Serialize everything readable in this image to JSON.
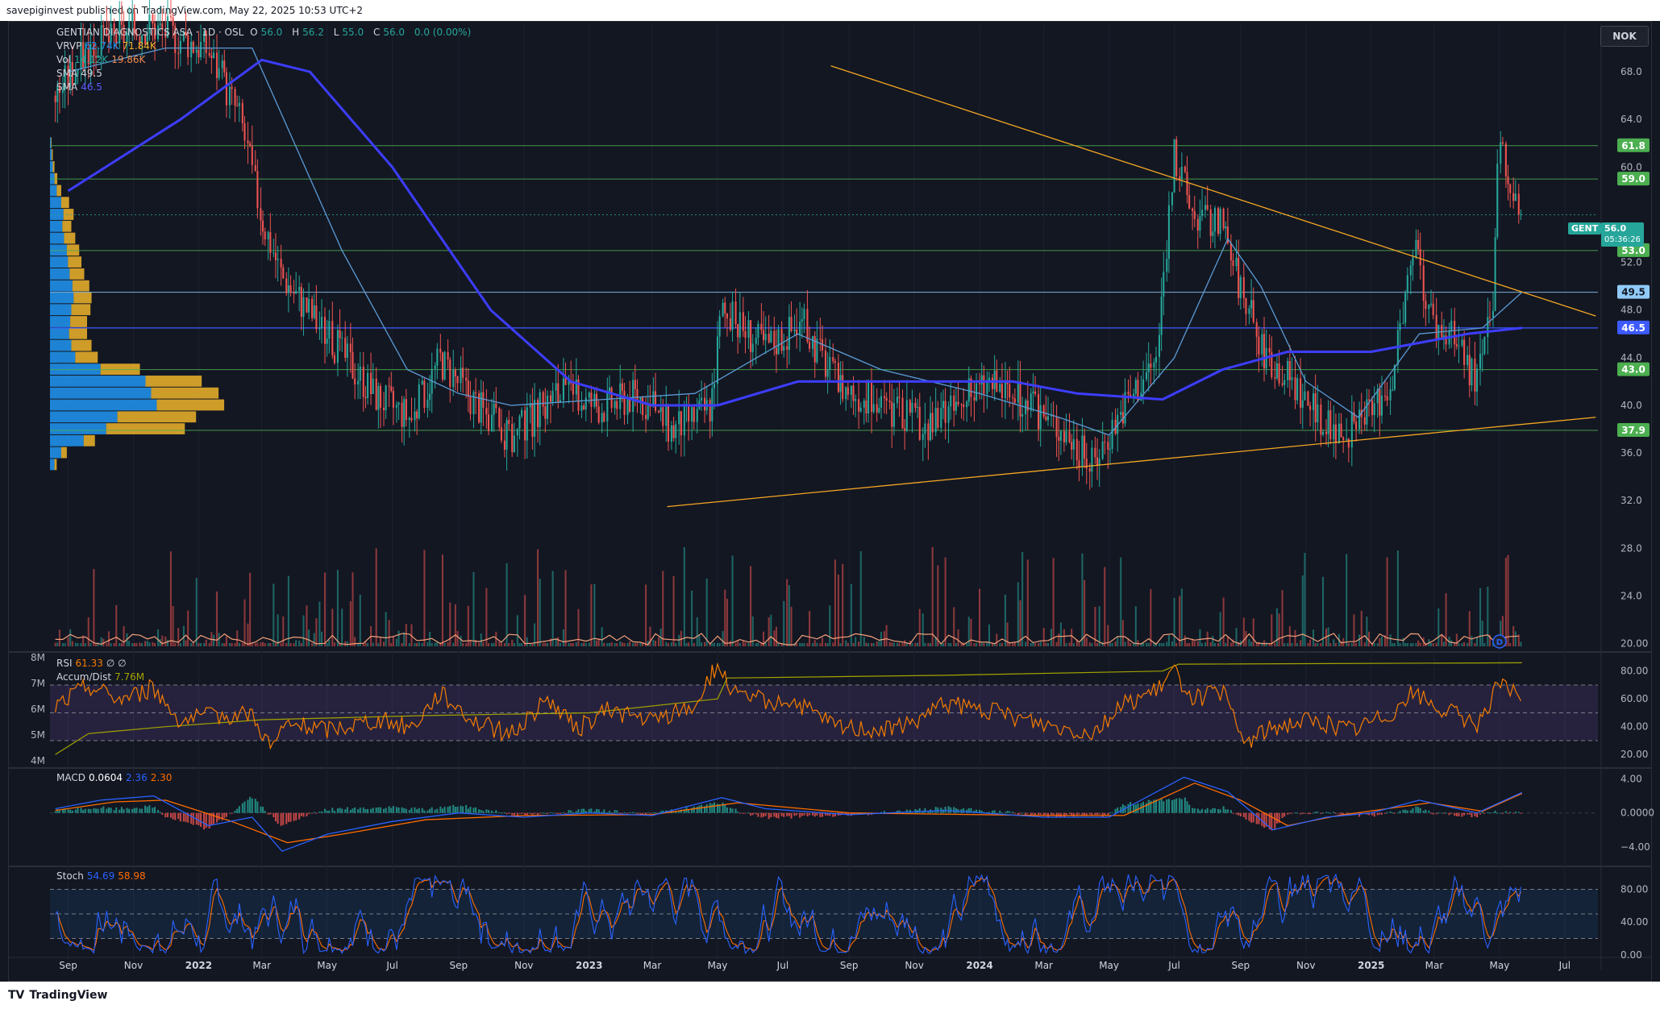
{
  "header": {
    "publisher": "savepiginvest published on TradingView.com, May 22, 2025 10:53 UTC+2"
  },
  "footer": {
    "brand": "TradingView",
    "logo_text": "TV"
  },
  "currency_button": "NOK",
  "legend": {
    "symbol": "GENTIAN DIAGNOSTICS ASA · 1D · OSL",
    "o_label": "O",
    "o_value": "56.0",
    "h_label": "H",
    "h_value": "56.2",
    "l_label": "L",
    "l_value": "55.0",
    "c_label": "C",
    "c_value": "56.0",
    "change": "0.0 (0.00%)",
    "vrvp_label": "VRVP",
    "vrvp_v1": "62.74K",
    "vrvp_v2": "71.84K",
    "vol_label": "Vol",
    "vol_v1": "14.12K",
    "vol_v2": "19.86K",
    "sma1_label": "SMA",
    "sma1_value": "49.5",
    "sma2_label": "SMA",
    "sma2_value": "46.5"
  },
  "price_tag": {
    "symbol": "GENT",
    "price": "56.0",
    "countdown": "05:36:26"
  },
  "colors": {
    "background": "#131722",
    "up": "#26a69a",
    "down": "#ef5350",
    "sma_fast": "#5b9bd5",
    "sma_slow": "#3d3dff",
    "trendline": "#f5a623",
    "support": "#4caf50",
    "rsi": "#f57c00",
    "vrvp_up": "#2196f3",
    "vrvp_down": "#f0b429"
  },
  "chart_data": [
    {
      "id": "price",
      "type": "candlestick",
      "y_ticks": [
        "68.0",
        "64.0",
        "60.0",
        "52.0",
        "48.0",
        "44.0",
        "40.0",
        "36.0",
        "32.0",
        "28.0",
        "24.0",
        "20.00"
      ],
      "ylim": [
        19.5,
        72
      ],
      "x_ticks": [
        "Sep",
        "Nov",
        "2022",
        "Mar",
        "May",
        "Jul",
        "Sep",
        "Nov",
        "2023",
        "Mar",
        "May",
        "Jul",
        "Sep",
        "Nov",
        "2024",
        "Mar",
        "May",
        "Jul",
        "Sep",
        "Nov",
        "2025",
        "Mar",
        "May",
        "Jul"
      ],
      "x_dates": [
        "2021-09",
        "2021-11",
        "2022-01",
        "2022-03",
        "2022-05",
        "2022-07",
        "2022-09",
        "2022-11",
        "2023-01",
        "2023-03",
        "2023-05",
        "2023-07",
        "2023-09",
        "2023-11",
        "2024-01",
        "2024-03",
        "2024-05",
        "2024-07",
        "2024-09",
        "2024-11",
        "2025-01",
        "2025-03",
        "2025-05",
        "2025-07"
      ],
      "levels": [
        {
          "value": 61.8,
          "label": "61.8",
          "kind": "support"
        },
        {
          "value": 59.0,
          "label": "59.0",
          "kind": "support"
        },
        {
          "value": 53.0,
          "label": "53.0",
          "kind": "support"
        },
        {
          "value": 49.5,
          "label": "49.5",
          "kind": "sma_fast"
        },
        {
          "value": 46.5,
          "label": "46.5",
          "kind": "sma_slow"
        },
        {
          "value": 43.0,
          "label": "43.0",
          "kind": "support"
        },
        {
          "value": 37.9,
          "label": "37.9",
          "kind": "support"
        }
      ],
      "price_path": [
        [
          "2021-08-20",
          66
        ],
        [
          "2021-09-20",
          70
        ],
        [
          "2021-11-15",
          72
        ],
        [
          "2022-01-10",
          70
        ],
        [
          "2022-02-10",
          64
        ],
        [
          "2022-03-01",
          56
        ],
        [
          "2022-03-20",
          51
        ],
        [
          "2022-05-01",
          46
        ],
        [
          "2022-06-15",
          41
        ],
        [
          "2022-07-20",
          39
        ],
        [
          "2022-08-15",
          44
        ],
        [
          "2022-09-20",
          40
        ],
        [
          "2022-10-20",
          37
        ],
        [
          "2022-12-01",
          41
        ],
        [
          "2023-01-15",
          40
        ],
        [
          "2023-02-15",
          41
        ],
        [
          "2023-03-20",
          38
        ],
        [
          "2023-04-25",
          40
        ],
        [
          "2023-05-05",
          48
        ],
        [
          "2023-06-15",
          45
        ],
        [
          "2023-07-20",
          47
        ],
        [
          "2023-08-20",
          42
        ],
        [
          "2023-10-01",
          40
        ],
        [
          "2023-11-15",
          38
        ],
        [
          "2024-01-10",
          42
        ],
        [
          "2024-02-15",
          40
        ],
        [
          "2024-03-20",
          38
        ],
        [
          "2024-04-15",
          35
        ],
        [
          "2024-05-15",
          40
        ],
        [
          "2024-06-15",
          44
        ],
        [
          "2024-07-01",
          61
        ],
        [
          "2024-07-20",
          56
        ],
        [
          "2024-08-15",
          55
        ],
        [
          "2024-09-01",
          50
        ],
        [
          "2024-09-20",
          45
        ],
        [
          "2024-10-20",
          42
        ],
        [
          "2024-11-20",
          38
        ],
        [
          "2024-12-20",
          38
        ],
        [
          "2025-01-20",
          42
        ],
        [
          "2025-02-10",
          53
        ],
        [
          "2025-03-01",
          47
        ],
        [
          "2025-03-25",
          45
        ],
        [
          "2025-04-10",
          42
        ],
        [
          "2025-04-25",
          48
        ],
        [
          "2025-05-01",
          61.5
        ],
        [
          "2025-05-22",
          56
        ]
      ],
      "sma_slow_path": [
        [
          "2021-09-01",
          58
        ],
        [
          "2021-12-15",
          64
        ],
        [
          "2022-03-01",
          69
        ],
        [
          "2022-04-15",
          68
        ],
        [
          "2022-07-01",
          60
        ],
        [
          "2022-10-01",
          48
        ],
        [
          "2022-12-15",
          42
        ],
        [
          "2023-03-01",
          40
        ],
        [
          "2023-05-01",
          40
        ],
        [
          "2023-07-15",
          42
        ],
        [
          "2023-11-01",
          42
        ],
        [
          "2024-02-01",
          42
        ],
        [
          "2024-04-01",
          41
        ],
        [
          "2024-06-20",
          40.5
        ],
        [
          "2024-08-15",
          43
        ],
        [
          "2024-10-15",
          44.5
        ],
        [
          "2025-01-01",
          44.5
        ],
        [
          "2025-04-01",
          46
        ],
        [
          "2025-05-22",
          46.5
        ]
      ],
      "sma_fast_path": [
        [
          "2021-09-01",
          68
        ],
        [
          "2021-12-01",
          70
        ],
        [
          "2022-02-20",
          70
        ],
        [
          "2022-05-15",
          53
        ],
        [
          "2022-07-15",
          43
        ],
        [
          "2022-09-01",
          41
        ],
        [
          "2022-10-20",
          40
        ],
        [
          "2023-01-15",
          40.5
        ],
        [
          "2023-04-10",
          41
        ],
        [
          "2023-07-15",
          46
        ],
        [
          "2023-10-01",
          43
        ],
        [
          "2024-01-01",
          41
        ],
        [
          "2024-03-15",
          39
        ],
        [
          "2024-05-01",
          37.5
        ],
        [
          "2024-07-01",
          44
        ],
        [
          "2024-08-20",
          54
        ],
        [
          "2024-09-20",
          50
        ],
        [
          "2024-11-01",
          42
        ],
        [
          "2024-12-20",
          39
        ],
        [
          "2025-02-15",
          46
        ],
        [
          "2025-04-15",
          46.5
        ],
        [
          "2025-05-22",
          49.5
        ]
      ],
      "trendlines": [
        {
          "from": [
            "2023-08-15",
            68.5
          ],
          "to": [
            "2025-07-30",
            47.5
          ]
        },
        {
          "from": [
            "2023-03-15",
            31.5
          ],
          "to": [
            "2025-07-30",
            39.0
          ]
        }
      ],
      "vrvp": [
        {
          "price": 62,
          "up": 2,
          "down": 1
        },
        {
          "price": 61,
          "up": 3,
          "down": 2
        },
        {
          "price": 60,
          "up": 5,
          "down": 3
        },
        {
          "price": 59,
          "up": 8,
          "down": 5
        },
        {
          "price": 58,
          "up": 12,
          "down": 8
        },
        {
          "price": 57,
          "up": 20,
          "down": 14
        },
        {
          "price": 56,
          "up": 24,
          "down": 18
        },
        {
          "price": 55,
          "up": 22,
          "down": 16
        },
        {
          "price": 54,
          "up": 25,
          "down": 20
        },
        {
          "price": 53,
          "up": 30,
          "down": 22
        },
        {
          "price": 52,
          "up": 32,
          "down": 24
        },
        {
          "price": 51,
          "up": 35,
          "down": 26
        },
        {
          "price": 50,
          "up": 40,
          "down": 30
        },
        {
          "price": 49,
          "up": 42,
          "down": 32
        },
        {
          "price": 48,
          "up": 38,
          "down": 34
        },
        {
          "price": 47,
          "up": 36,
          "down": 30
        },
        {
          "price": 46,
          "up": 34,
          "down": 32
        },
        {
          "price": 45,
          "up": 38,
          "down": 36
        },
        {
          "price": 44,
          "up": 45,
          "down": 40
        },
        {
          "price": 43,
          "up": 90,
          "down": 70
        },
        {
          "price": 42,
          "up": 170,
          "down": 100
        },
        {
          "price": 41,
          "up": 180,
          "down": 120
        },
        {
          "price": 40,
          "up": 190,
          "down": 120
        },
        {
          "price": 39,
          "up": 120,
          "down": 140
        },
        {
          "price": 38,
          "up": 100,
          "down": 140
        },
        {
          "price": 37,
          "up": 60,
          "down": 20
        },
        {
          "price": 36,
          "up": 20,
          "down": 10
        },
        {
          "price": 35,
          "up": 8,
          "down": 4
        }
      ],
      "dividend_marker": {
        "date": "2025-05-01",
        "label": "D"
      }
    },
    {
      "id": "rsi",
      "type": "line",
      "legend_label": "RSI",
      "legend_value": "61.33",
      "legend_extra": "∅ ∅",
      "accum_label": "Accum/Dist",
      "accum_value": "7.76M",
      "left_ticks": [
        "8M",
        "7M",
        "6M",
        "5M",
        "4M"
      ],
      "y_ticks": [
        "80.00",
        "60.00",
        "40.00",
        "20.00"
      ],
      "ylim": [
        12,
        92
      ],
      "bands": [
        70,
        50,
        30
      ],
      "path": [
        [
          "2021-08-20",
          55
        ],
        [
          "2021-09-20",
          70
        ],
        [
          "2021-10-20",
          60
        ],
        [
          "2021-11-20",
          68
        ],
        [
          "2021-12-15",
          45
        ],
        [
          "2022-01-20",
          48
        ],
        [
          "2022-02-20",
          50
        ],
        [
          "2022-03-10",
          25
        ],
        [
          "2022-03-25",
          42
        ],
        [
          "2022-05-01",
          38
        ],
        [
          "2022-06-15",
          45
        ],
        [
          "2022-07-20",
          40
        ],
        [
          "2022-08-15",
          65
        ],
        [
          "2022-09-20",
          42
        ],
        [
          "2022-10-20",
          35
        ],
        [
          "2022-11-25",
          60
        ],
        [
          "2022-12-20",
          38
        ],
        [
          "2023-01-20",
          52
        ],
        [
          "2023-03-01",
          44
        ],
        [
          "2023-04-10",
          55
        ],
        [
          "2023-05-01",
          85
        ],
        [
          "2023-05-20",
          60
        ],
        [
          "2023-07-10",
          58
        ],
        [
          "2023-08-20",
          40
        ],
        [
          "2023-10-15",
          38
        ],
        [
          "2023-12-01",
          56
        ],
        [
          "2024-01-20",
          50
        ],
        [
          "2024-03-01",
          42
        ],
        [
          "2024-04-15",
          36
        ],
        [
          "2024-05-20",
          58
        ],
        [
          "2024-06-15",
          65
        ],
        [
          "2024-07-01",
          80
        ],
        [
          "2024-07-20",
          60
        ],
        [
          "2024-08-15",
          65
        ],
        [
          "2024-09-05",
          28
        ],
        [
          "2024-10-01",
          40
        ],
        [
          "2024-11-01",
          45
        ],
        [
          "2024-12-15",
          38
        ],
        [
          "2025-01-20",
          50
        ],
        [
          "2025-02-10",
          65
        ],
        [
          "2025-03-01",
          55
        ],
        [
          "2025-04-10",
          42
        ],
        [
          "2025-05-01",
          70
        ],
        [
          "2025-05-22",
          61
        ]
      ],
      "accum_path": [
        [
          "2021-08-20",
          20
        ],
        [
          "2021-09-20",
          35
        ],
        [
          "2021-12-01",
          40
        ],
        [
          "2022-03-01",
          45
        ],
        [
          "2022-08-01",
          48
        ],
        [
          "2023-01-01",
          50
        ],
        [
          "2023-05-01",
          60
        ],
        [
          "2023-05-10",
          75
        ],
        [
          "2023-12-01",
          77
        ],
        [
          "2024-06-20",
          80
        ],
        [
          "2024-07-05",
          85
        ],
        [
          "2025-05-22",
          86
        ]
      ]
    },
    {
      "id": "macd",
      "type": "line",
      "legend_label": "MACD",
      "legend_value": "0.0604",
      "legend_v2": "2.36",
      "legend_v3": "2.30",
      "y_ticks": [
        "4.00",
        "0.0000",
        "−4.00"
      ],
      "ylim": [
        -6,
        5
      ],
      "macd_path": [
        [
          "2021-08-20",
          0.5
        ],
        [
          "2021-10-01",
          1.5
        ],
        [
          "2021-11-20",
          2
        ],
        [
          "2022-01-10",
          -1.5
        ],
        [
          "2022-02-20",
          -0.5
        ],
        [
          "2022-03-20",
          -4.5
        ],
        [
          "2022-05-01",
          -2.5
        ],
        [
          "2022-07-01",
          -1
        ],
        [
          "2022-09-01",
          0
        ],
        [
          "2022-11-01",
          -0.5
        ],
        [
          "2023-01-01",
          0
        ],
        [
          "2023-03-01",
          -0.3
        ],
        [
          "2023-05-05",
          1.8
        ],
        [
          "2023-06-15",
          0.5
        ],
        [
          "2023-09-01",
          -0.2
        ],
        [
          "2023-12-01",
          0.3
        ],
        [
          "2024-03-01",
          -0.5
        ],
        [
          "2024-05-01",
          -0.5
        ],
        [
          "2024-07-10",
          4.2
        ],
        [
          "2024-08-20",
          2.5
        ],
        [
          "2024-10-01",
          -2
        ],
        [
          "2024-11-20",
          -0.5
        ],
        [
          "2025-01-01",
          0
        ],
        [
          "2025-02-15",
          1.5
        ],
        [
          "2025-04-10",
          0
        ],
        [
          "2025-05-22",
          2.4
        ]
      ],
      "signal_path": [
        [
          "2021-08-20",
          0.3
        ],
        [
          "2021-10-15",
          1.3
        ],
        [
          "2021-12-01",
          1.5
        ],
        [
          "2022-02-01",
          -1
        ],
        [
          "2022-03-25",
          -3.5
        ],
        [
          "2022-05-15",
          -2.5
        ],
        [
          "2022-08-01",
          -0.8
        ],
        [
          "2022-11-01",
          -0.3
        ],
        [
          "2023-03-01",
          -0.2
        ],
        [
          "2023-05-20",
          1.2
        ],
        [
          "2023-09-01",
          0
        ],
        [
          "2024-03-01",
          -0.3
        ],
        [
          "2024-05-15",
          -0.3
        ],
        [
          "2024-07-20",
          3.5
        ],
        [
          "2024-09-01",
          1.5
        ],
        [
          "2024-10-15",
          -1.5
        ],
        [
          "2024-12-01",
          -0.3
        ],
        [
          "2025-02-25",
          1.2
        ],
        [
          "2025-04-15",
          0.2
        ],
        [
          "2025-05-22",
          2.3
        ]
      ]
    },
    {
      "id": "stoch",
      "type": "line",
      "legend_label": "Stoch",
      "legend_k": "54.69",
      "legend_d": "58.98",
      "y_ticks": [
        "80.00",
        "40.00",
        "0.00"
      ],
      "ylim": [
        -5,
        105
      ],
      "bands": [
        80,
        50,
        20
      ],
      "k_series_seed": 7,
      "d_series_seed": 11,
      "last_value": 55
    }
  ]
}
